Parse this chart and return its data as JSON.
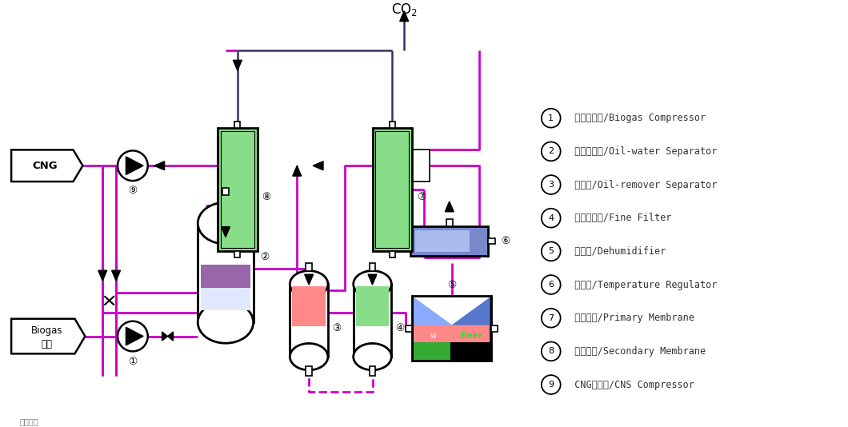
{
  "bg_color": "#ffffff",
  "magenta": "#cc00cc",
  "black": "#000000",
  "dark_blue": "#000066",
  "legend_items": [
    {
      "num": "1",
      "zh": "沼气压缩机",
      "en": "Biogas Compressor"
    },
    {
      "num": "2",
      "zh": "油水分离器",
      "en": "Oil-water Separator"
    },
    {
      "num": "3",
      "zh": "除油器",
      "en": "Oil-remover Separator"
    },
    {
      "num": "4",
      "zh": "精密过滤器",
      "en": "Fine Filter"
    },
    {
      "num": "5",
      "zh": "除湿器",
      "en": "Dehumidifier"
    },
    {
      "num": "6",
      "zh": "调湿器",
      "en": "Temperature Regulator"
    },
    {
      "num": "7",
      "zh": "一级膜件",
      "en": "Primary Membrane"
    },
    {
      "num": "8",
      "zh": "二级膜件",
      "en": "Secondary Membrane"
    },
    {
      "num": "9",
      "zh": "CNG压缩机",
      "en": "CNS Compressor"
    }
  ]
}
